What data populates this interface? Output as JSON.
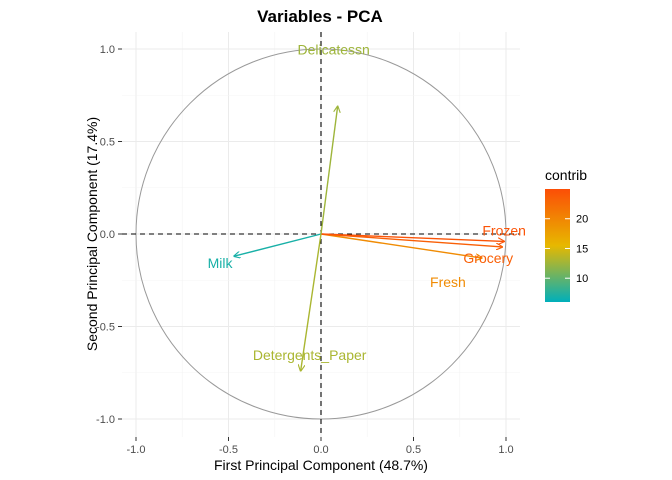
{
  "chart_data": {
    "type": "scatter",
    "title": "Variables - PCA",
    "xlabel": "First Principal Component (48.7%)",
    "ylabel": "Second Principal Component (17.4%)",
    "xlim": [
      -1.0,
      1.0
    ],
    "ylim": [
      -1.0,
      1.0
    ],
    "xticks": [
      "-1.0",
      "-0.5",
      "0.0",
      "0.5",
      "1.0"
    ],
    "yticks": [
      "-1.0",
      "-0.5",
      "0.0",
      "0.5",
      "1.0"
    ],
    "grid": true,
    "unit_circle": true,
    "legend": {
      "title": "contrib",
      "placement": "right",
      "ticks": [
        "10",
        "15",
        "20"
      ],
      "colors": [
        "#00AFBB",
        "#E7B800",
        "#FC4E07"
      ]
    },
    "variables": [
      {
        "name": "Fresh",
        "x": 0.87,
        "y": -0.13,
        "contrib": 19.5
      },
      {
        "name": "Milk",
        "x": -0.47,
        "y": -0.12,
        "contrib": 7.0
      },
      {
        "name": "Grocery",
        "x": 0.98,
        "y": -0.07,
        "contrib": 23.5
      },
      {
        "name": "Frozen",
        "x": 0.99,
        "y": -0.04,
        "contrib": 24.5
      },
      {
        "name": "Detergents_Paper",
        "x": -0.11,
        "y": -0.74,
        "contrib": 13.0
      },
      {
        "name": "Delicatessn",
        "x": 0.09,
        "y": 0.69,
        "contrib": 12.5
      }
    ]
  }
}
